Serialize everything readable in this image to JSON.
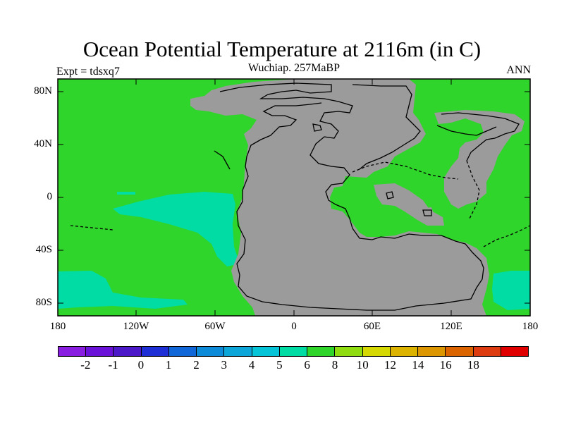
{
  "title": "Ocean Potential Temperature at 2116m (in C)",
  "subtitle": "Wuchiap. 257MaBP",
  "left_label": "Expt = tdsxq7",
  "right_label": "ANN",
  "colors": {
    "ocean_main": "#2fd52a",
    "ocean_cool": "#00dca3",
    "land": "#9b9b9b",
    "coast": "#000000"
  },
  "y_axis": {
    "ticks": [
      "80N",
      "40N",
      "0",
      "40S",
      "80S"
    ]
  },
  "x_axis": {
    "ticks": [
      "180",
      "120W",
      "60W",
      "0",
      "60E",
      "120E",
      "180"
    ]
  },
  "colorbar": {
    "colors": [
      "#8a1ee0",
      "#6a12d8",
      "#4b19c8",
      "#1e2fd6",
      "#1166d8",
      "#0d8bd8",
      "#0ca7d8",
      "#05c4d8",
      "#00dca3",
      "#2fd52a",
      "#8fdc10",
      "#d6d804",
      "#dcb400",
      "#dc9600",
      "#dc6400",
      "#dc3c10",
      "#e00000"
    ],
    "labels": [
      "-2",
      "-1",
      "0",
      "1",
      "2",
      "3",
      "4",
      "5",
      "6",
      "8",
      "10",
      "12",
      "14",
      "16",
      "18"
    ]
  }
}
